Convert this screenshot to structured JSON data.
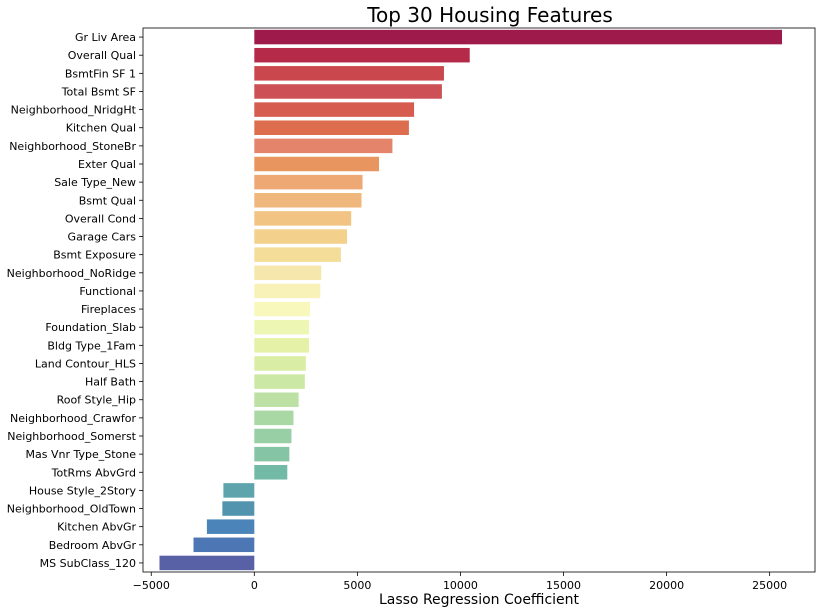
{
  "chart_data": {
    "type": "bar",
    "orientation": "horizontal",
    "title": "Top 30 Housing Features",
    "xlabel": "Lasso Regression Coefficient",
    "ylabel": "",
    "xlim": [
      -5400,
      27200
    ],
    "xticks": [
      -5000,
      0,
      5000,
      10000,
      15000,
      20000,
      25000
    ],
    "xtick_labels": [
      "−5000",
      "0",
      "5000",
      "10000",
      "15000",
      "20000",
      "25000"
    ],
    "grid": false,
    "palette": "Spectral",
    "categories": [
      "Gr Liv Area",
      "Overall Qual",
      "BsmtFin SF 1",
      "Total Bsmt SF",
      "Neighborhood_NridgHt",
      "Kitchen Qual",
      "Neighborhood_StoneBr",
      "Exter Qual",
      "Sale Type_New",
      "Bsmt Qual",
      "Overall Cond",
      "Garage Cars",
      "Bsmt Exposure",
      "Neighborhood_NoRidge",
      "Functional",
      "Fireplaces",
      "Foundation_Slab",
      "Bldg Type_1Fam",
      "Land Contour_HLS",
      "Half Bath",
      "Roof Style_Hip",
      "Neighborhood_Crawfor",
      "Neighborhood_Somerst",
      "Mas Vnr Type_Stone",
      "TotRms AbvGrd",
      "House Style_2Story",
      "Neighborhood_OldTown",
      "Kitchen AbvGr",
      "Bedroom AbvGr",
      "MS SubClass_120"
    ],
    "values": [
      25600,
      10450,
      9200,
      9100,
      7750,
      7500,
      6700,
      6050,
      5250,
      5200,
      4700,
      4500,
      4200,
      3250,
      3200,
      2700,
      2650,
      2650,
      2500,
      2450,
      2150,
      1900,
      1800,
      1700,
      1600,
      -1500,
      -1550,
      -2300,
      -2950,
      -4600
    ],
    "colors": [
      "#9e1a4a",
      "#b62a49",
      "#ca474e",
      "#cc5055",
      "#d55c4f",
      "#dc6d4e",
      "#e4856b",
      "#e8955f",
      "#eda874",
      "#efb77b",
      "#f1c484",
      "#f3d08c",
      "#f4dd98",
      "#f6e8ad",
      "#f8f2b8",
      "#f8f8bc",
      "#eef6b4",
      "#e4f1a6",
      "#d9eea4",
      "#cce8a5",
      "#bde1a4",
      "#a9d8a4",
      "#98cfa5",
      "#86c4a6",
      "#72b9a6",
      "#5ea4ac",
      "#5294ae",
      "#4a84b8",
      "#4d77b4",
      "#5861a6"
    ]
  }
}
